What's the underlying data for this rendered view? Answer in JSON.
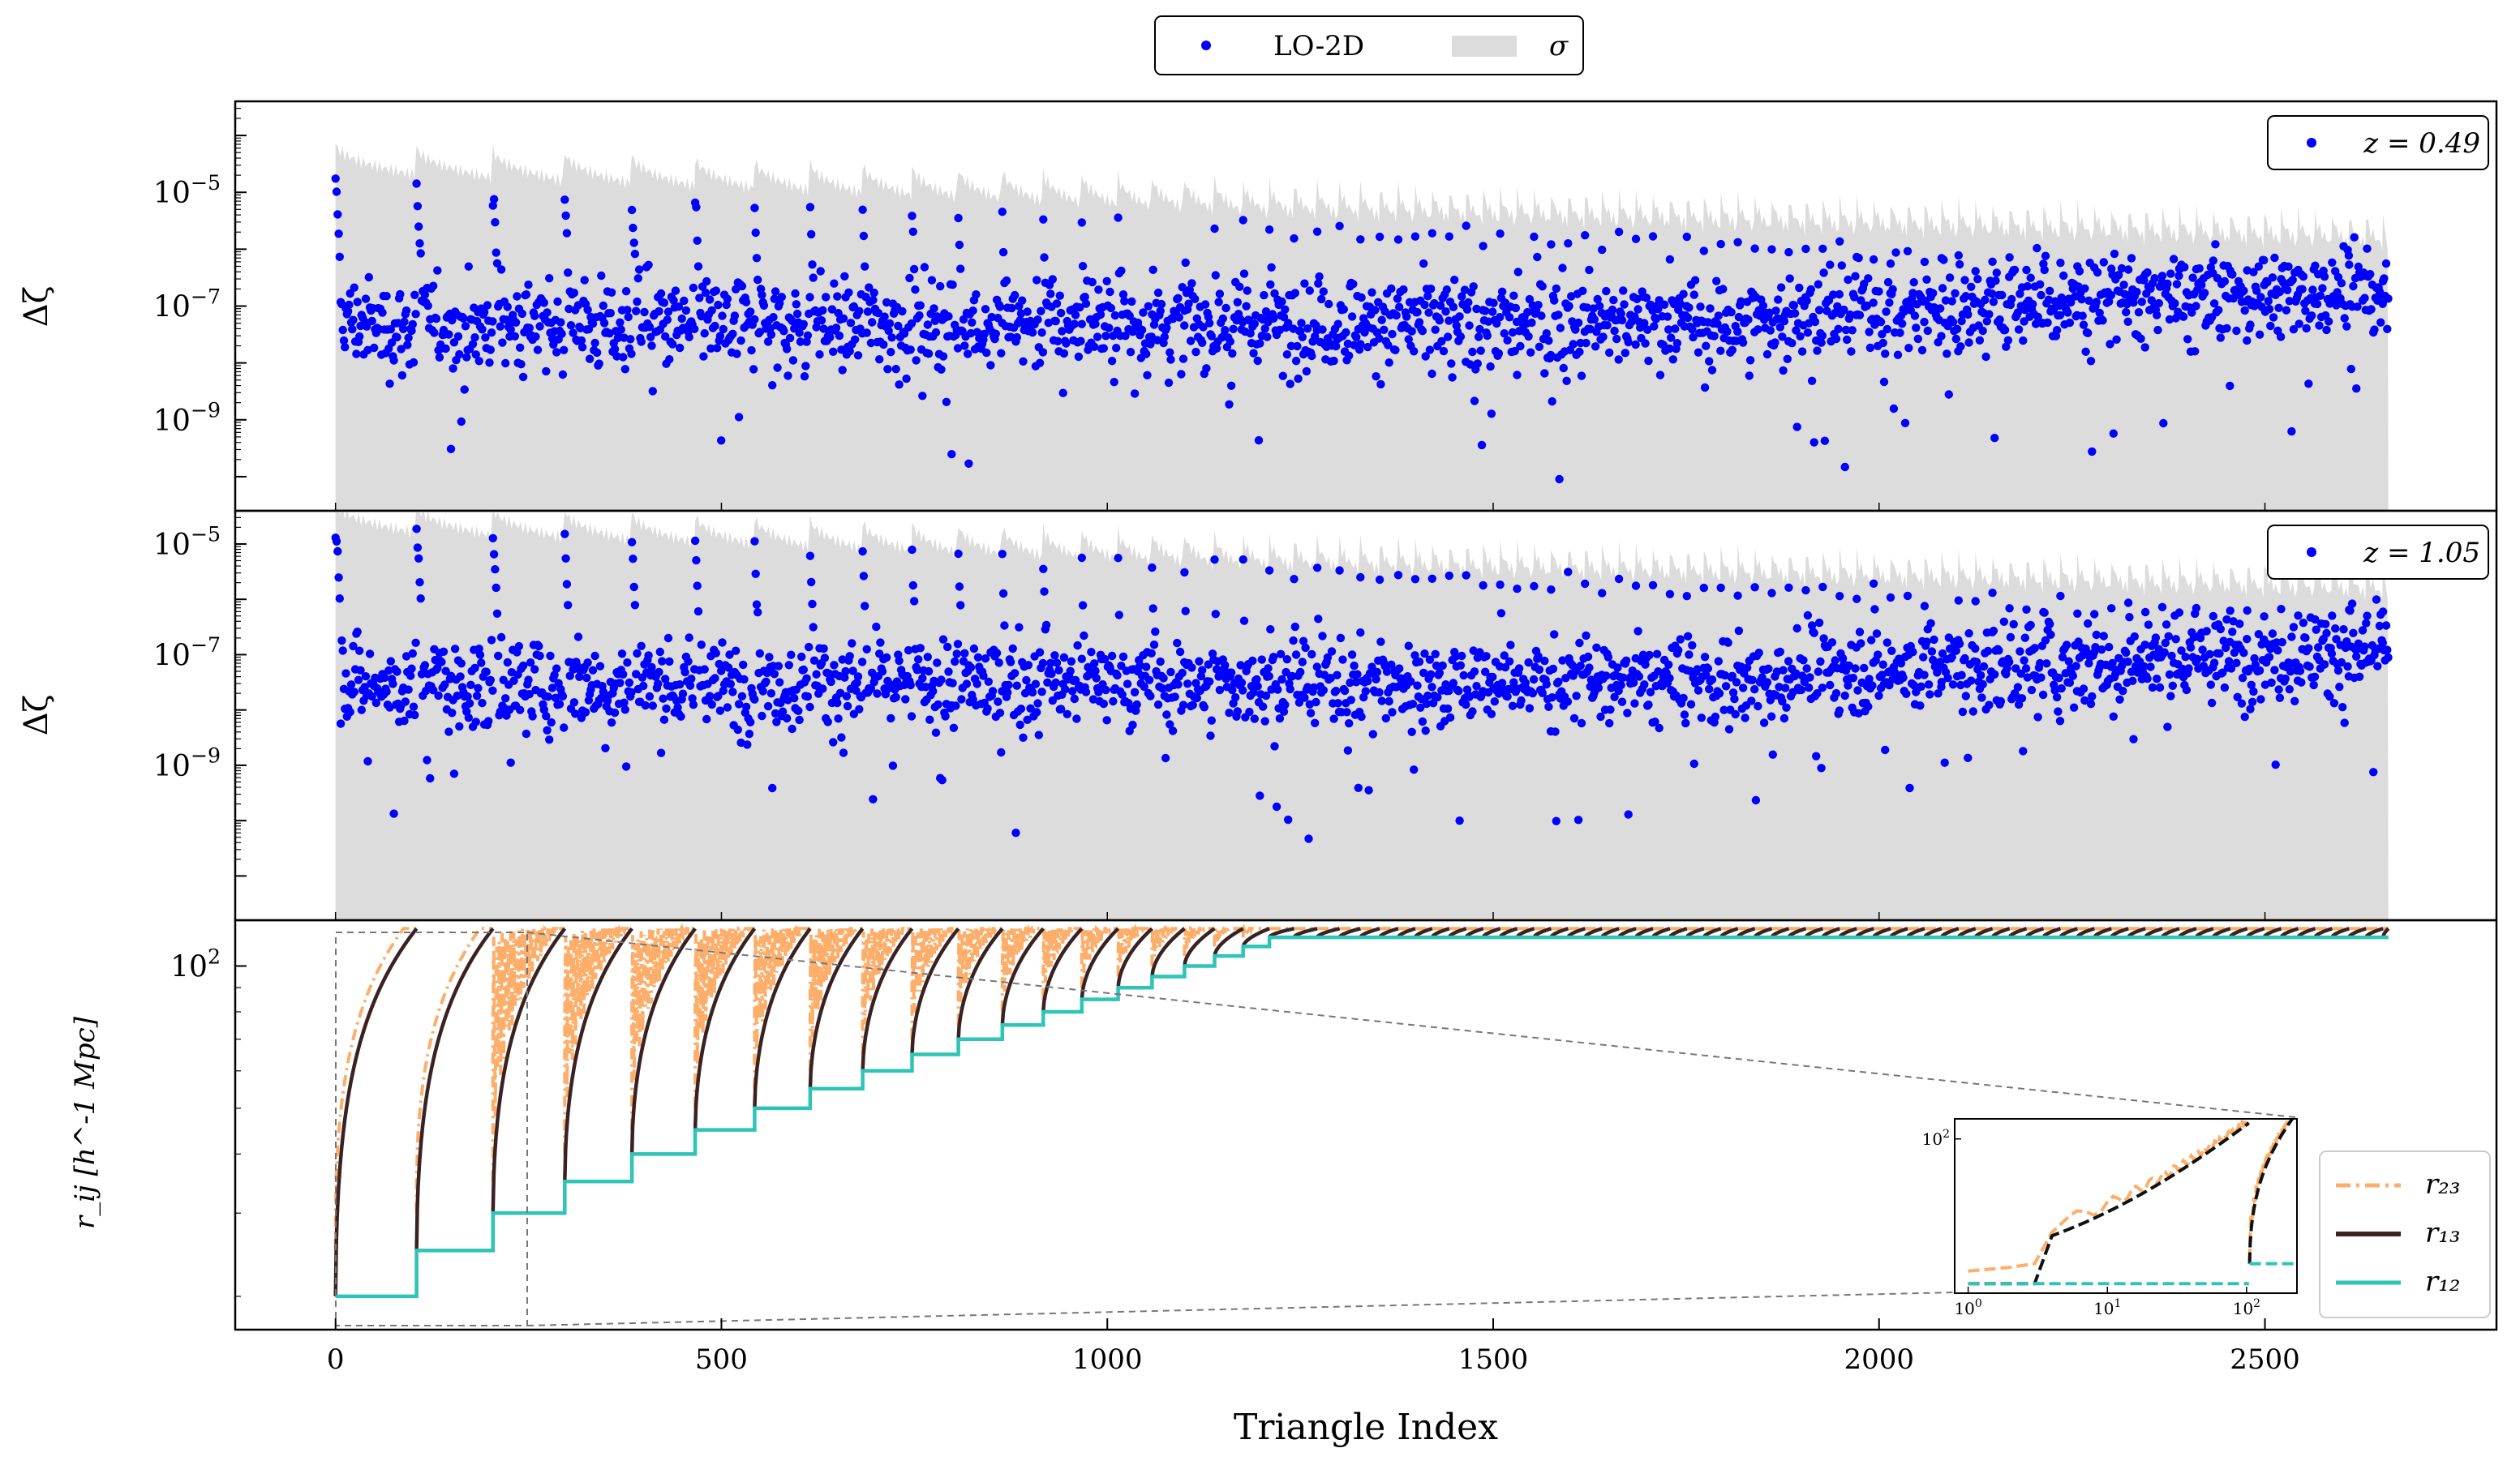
{
  "chart_data": {
    "type": "scatter",
    "xlabel": "Triangle Index",
    "xlim": [
      -130,
      2800
    ],
    "xticks": [
      0,
      500,
      1000,
      1500,
      2000,
      2500
    ],
    "n_triangles": 2660,
    "legend": {
      "placement": "top-center",
      "entries": [
        {
          "label": "LO-2D",
          "color": "#0000ff",
          "kind": "marker"
        },
        {
          "label": "σ",
          "color": "#dcdcdc",
          "kind": "patch"
        }
      ]
    },
    "panels": [
      {
        "ylabel": "Δζ",
        "yscale": "log",
        "ylim_exp": [
          -10.6,
          -3.4
        ],
        "ytick_labels": [
          {
            "base": "10",
            "exp": "−5",
            "value": 1e-05
          },
          {
            "base": "10",
            "exp": "−7",
            "value": 1e-07
          },
          {
            "base": "10",
            "exp": "−9",
            "value": 1e-09
          }
        ],
        "legend_label": "z = 0.49",
        "legend_placement": "top-right",
        "sigma_band": {
          "color": "#dcdcdc",
          "start_exp": -4.4,
          "end_exp": -5.4
        },
        "series": [
          {
            "name": "LO-2D",
            "color": "#0000ff",
            "start_exp": -4.9,
            "median_exp": -7.4,
            "end_exp": -6.8
          }
        ]
      },
      {
        "ylabel": "Δζ",
        "yscale": "log",
        "ylim_exp": [
          -11.8,
          -4.4
        ],
        "ytick_labels": [
          {
            "base": "10",
            "exp": "−5",
            "value": 1e-05
          },
          {
            "base": "10",
            "exp": "−7",
            "value": 1e-07
          },
          {
            "base": "10",
            "exp": "−9",
            "value": 1e-09
          }
        ],
        "legend_label": "z = 1.05",
        "legend_placement": "top-right",
        "sigma_band": {
          "color": "#dcdcdc",
          "start_exp": -4.5,
          "end_exp": -5.4
        },
        "series": [
          {
            "name": "LO-2D",
            "color": "#0000ff",
            "start_exp": -4.7,
            "median_exp": -7.6,
            "end_exp": -7.0
          }
        ]
      },
      {
        "ylabel": "r_ij [h^-1 Mpc]",
        "yscale": "log",
        "ylim": [
          17,
          125
        ],
        "ytick_labels": [
          {
            "base": "10",
            "exp": "2",
            "value": 100
          }
        ],
        "legend_placement": "bottom-right",
        "series": [
          {
            "name": "r₂₃",
            "color": "#fdae6b",
            "style": "dashdot"
          },
          {
            "name": "r₁₃",
            "color": "#3b2222",
            "style": "solid"
          },
          {
            "name": "r₁₂",
            "color": "#2ec4b6",
            "style": "solid"
          }
        ],
        "separation_r12": [
          20,
          25,
          30,
          35,
          40,
          45,
          50,
          55,
          60,
          65,
          70,
          75,
          80,
          85,
          90,
          95,
          100,
          105,
          110,
          115
        ],
        "max_separation": 120,
        "inset": {
          "xscale": "log",
          "yscale": "log",
          "xrange": [
            0,
            230
          ],
          "xtick_labels": [
            {
              "base": "10",
              "exp": "0"
            },
            {
              "base": "10",
              "exp": "1"
            },
            {
              "base": "10",
              "exp": "2"
            }
          ],
          "ytick_labels": [
            {
              "base": "10",
              "exp": "2"
            }
          ]
        }
      }
    ]
  }
}
